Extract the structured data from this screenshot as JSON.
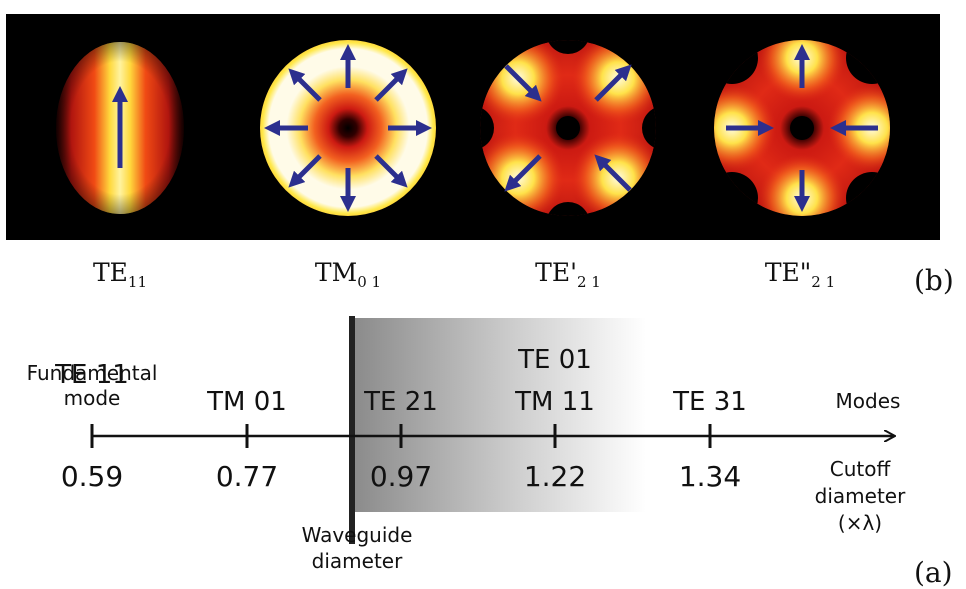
{
  "panel_b": {
    "letter": "(b)",
    "modes": [
      {
        "base": "TE",
        "sub": "11"
      },
      {
        "base": "TM",
        "sub": "0 1"
      },
      {
        "base": "TE'",
        "sub": "2 1"
      },
      {
        "base": "TE\"",
        "sub": "2 1"
      }
    ]
  },
  "panel_a": {
    "letter": "(a)",
    "ticks": [
      {
        "mode_lines": [
          "TE 11"
        ],
        "note": [
          "Fundamental",
          "mode"
        ],
        "value": "0.59"
      },
      {
        "mode_lines": [
          "TM 01"
        ],
        "value": "0.77"
      },
      {
        "mode_lines": [
          "TE 21"
        ],
        "value": "0.97"
      },
      {
        "mode_lines": [
          "TE 01",
          "TM 11"
        ],
        "value": "1.22"
      },
      {
        "mode_lines": [
          "TE 31"
        ],
        "value": "1.34"
      }
    ],
    "axis_label_top": "Modes",
    "axis_label_bottom": [
      "Cutoff",
      "diameter",
      "(×λ)"
    ],
    "waveguide_label": [
      "Waveguide",
      "diameter"
    ]
  },
  "colors": {
    "field_dark": "#000000",
    "field_red": "#d8201c",
    "field_yellow": "#ffe84a",
    "field_white": "#ffffff",
    "arrow": "#2c2f8e",
    "shade": "#8a8a8a"
  }
}
